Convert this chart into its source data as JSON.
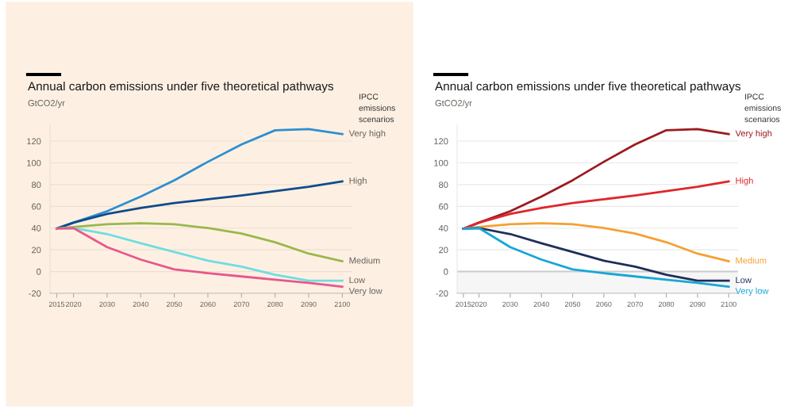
{
  "chart_data": [
    {
      "type": "line",
      "title": "Annual carbon emissions under five theoretical pathways",
      "ylabel": "GtCO2/yr",
      "legend_title": "IPCC emissions scenarios",
      "x": [
        2015,
        2020,
        2030,
        2040,
        2050,
        2060,
        2070,
        2080,
        2090,
        2100
      ],
      "series": [
        {
          "name": "Very high",
          "color": "#2e8fcf",
          "values": [
            39.5,
            45,
            55.5,
            69,
            84,
            101,
            117,
            130,
            131,
            126.5
          ]
        },
        {
          "name": "High",
          "color": "#0f4c8a",
          "values": [
            39.5,
            45,
            53,
            58.5,
            63,
            66.5,
            70,
            74,
            78,
            83
          ]
        },
        {
          "name": "Medium",
          "color": "#9ab84a",
          "values": [
            39.5,
            41,
            43.5,
            44.5,
            43.5,
            40,
            35,
            27,
            16.5,
            9.5
          ]
        },
        {
          "name": "Low",
          "color": "#6fdde0",
          "values": [
            39.5,
            40,
            34.5,
            26,
            18,
            10,
            4.5,
            -3,
            -8.5,
            -8.5
          ]
        },
        {
          "name": "Very low",
          "color": "#e8578b",
          "values": [
            39.5,
            40,
            22.5,
            11,
            2,
            -1.5,
            -4.5,
            -7.5,
            -10.5,
            -14
          ]
        }
      ],
      "xlim": [
        2013,
        2103
      ],
      "xticks": [
        2015,
        2020,
        2030,
        2040,
        2050,
        2060,
        2070,
        2080,
        2090,
        2100
      ],
      "ylim": [
        -20,
        135
      ],
      "yticks": [
        -20,
        0,
        20,
        40,
        60,
        80,
        100,
        120
      ],
      "grid": "y",
      "legend": "right",
      "marker": "none",
      "line_style": "solid"
    },
    {
      "type": "line",
      "title": "Annual carbon emissions under five theoretical pathways",
      "ylabel": "GtCO2/yr",
      "legend_title": "IPCC emissions scenarios",
      "x": [
        2015,
        2020,
        2030,
        2040,
        2050,
        2060,
        2070,
        2080,
        2090,
        2100
      ],
      "series": [
        {
          "name": "Very high",
          "color": "#9b1b1e",
          "values": [
            39.5,
            45,
            55.5,
            69,
            84,
            101,
            117,
            130,
            131,
            126.5
          ]
        },
        {
          "name": "High",
          "color": "#e0252b",
          "values": [
            39.5,
            45,
            53,
            58.5,
            63,
            66.5,
            70,
            74,
            78,
            83
          ]
        },
        {
          "name": "Medium",
          "color": "#f5a033",
          "values": [
            39.5,
            41,
            43.5,
            44.5,
            43.5,
            40,
            35,
            27,
            16.5,
            9.5
          ]
        },
        {
          "name": "Low",
          "color": "#1f2e5a",
          "values": [
            39.5,
            40,
            34.5,
            26,
            18,
            10,
            4.5,
            -3,
            -8.5,
            -8.5
          ]
        },
        {
          "name": "Very low",
          "color": "#16a7d8",
          "values": [
            39.5,
            40,
            22.5,
            11,
            2,
            -1.5,
            -4.5,
            -7.5,
            -10.5,
            -14
          ]
        }
      ],
      "xlim": [
        2013,
        2103
      ],
      "xticks": [
        2015,
        2020,
        2030,
        2040,
        2050,
        2060,
        2070,
        2080,
        2090,
        2100
      ],
      "ylim": [
        -20,
        135
      ],
      "yticks": [
        -20,
        0,
        20,
        40,
        60,
        80,
        100,
        120
      ],
      "grid": "y",
      "legend": "right",
      "marker": "none",
      "line_style": "solid",
      "bands": [
        {
          "axis": "y",
          "from": -20,
          "to": 0,
          "color": "#f6f6f6"
        }
      ],
      "ref_lines": [
        {
          "axis": "y",
          "value": 0,
          "color": "#cccccc"
        }
      ]
    }
  ]
}
